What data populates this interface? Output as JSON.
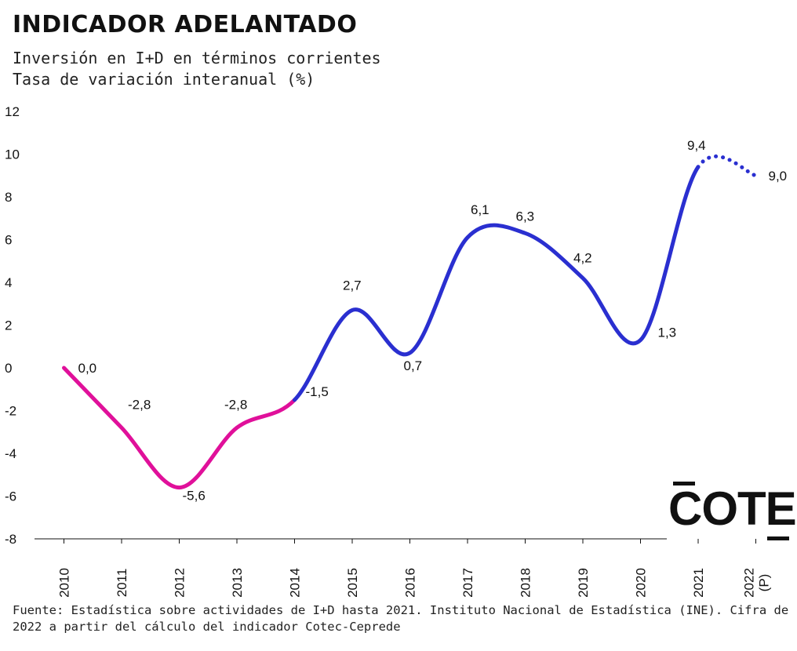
{
  "title": "INDICADOR ADELANTADO",
  "subtitle_line1": "Inversión en I+D en términos corrientes",
  "subtitle_line2": "Tasa de variación interanual (%)",
  "source": "Fuente: Estadística sobre actividades de I+D hasta 2021. Instituto Nacional de Estadística (INE). Cifra de 2022 a partir del cálculo del indicador Cotec-Ceprede",
  "logo_text": "COTEC",
  "colors": {
    "series_2010_2014": "#e0109a",
    "series_2014_2021": "#2a2fd0",
    "axis": "#111111"
  },
  "chart_data": {
    "type": "line",
    "title": "INDICADOR ADELANTADO",
    "ylim": [
      -8,
      12
    ],
    "yticks": [
      "12",
      "10",
      "8",
      "6",
      "4",
      "2",
      "0",
      "-2",
      "-4",
      "-6",
      "-8"
    ],
    "categories": [
      "2010",
      "2011",
      "2012",
      "2013",
      "2014",
      "2015",
      "2016",
      "2017",
      "2018",
      "2019",
      "2020",
      "2021",
      "2022 (P)"
    ],
    "x_label_lines": [
      [
        "2010"
      ],
      [
        "2011"
      ],
      [
        "2012"
      ],
      [
        "2013"
      ],
      [
        "2014"
      ],
      [
        "2015"
      ],
      [
        "2016"
      ],
      [
        "2017"
      ],
      [
        "2018"
      ],
      [
        "2019"
      ],
      [
        "2020"
      ],
      [
        "2021"
      ],
      [
        "2022",
        "(P)"
      ]
    ],
    "values": [
      0.0,
      -2.8,
      -5.6,
      -2.8,
      -1.5,
      2.7,
      0.7,
      6.1,
      6.3,
      4.2,
      1.3,
      9.4,
      9.0
    ],
    "value_labels": [
      "0,0",
      "-2,8",
      "-5,6",
      "-2,8",
      "-1,5",
      "2,7",
      "0,7",
      "6,1",
      "6,3",
      "4,2",
      "1,3",
      "9,4",
      "9,0"
    ],
    "segments": [
      {
        "from": 0,
        "to": 4,
        "color_key": "series_2010_2014",
        "style": "solid"
      },
      {
        "from": 4,
        "to": 11,
        "color_key": "series_2014_2021",
        "style": "solid"
      },
      {
        "from": 11,
        "to": 12,
        "color_key": "series_2014_2021",
        "style": "dotted"
      }
    ],
    "grid": false,
    "legend": "none"
  }
}
